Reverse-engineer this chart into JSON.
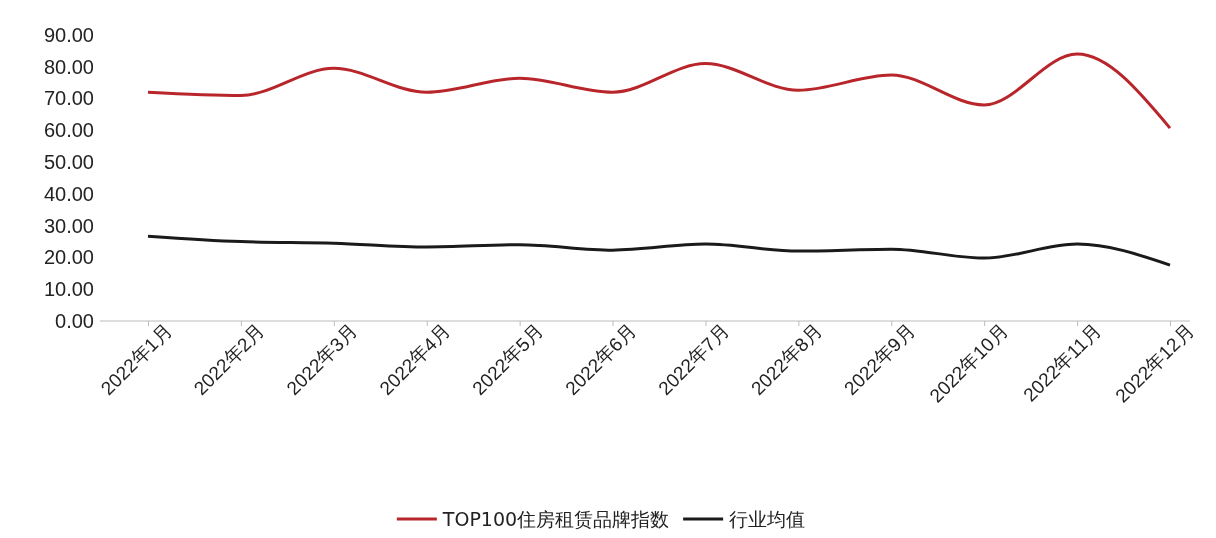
{
  "chart_data": {
    "type": "line",
    "categories": [
      "2022年1月",
      "2022年2月",
      "2022年3月",
      "2022年4月",
      "2022年5月",
      "2022年6月",
      "2022年7月",
      "2022年8月",
      "2022年9月",
      "2022年10月",
      "2022年11月",
      "2022年12月"
    ],
    "series": [
      {
        "name": "TOP100住房租赁品牌指数",
        "color": "#b8262b",
        "values": [
          72.0,
          71.0,
          79.5,
          72.0,
          76.4,
          72.0,
          81.0,
          72.6,
          77.4,
          68.0,
          84.0,
          60.7
        ]
      },
      {
        "name": "行业均值",
        "color": "#1a1a1a",
        "values": [
          26.7,
          25.0,
          24.5,
          23.3,
          24.0,
          22.3,
          24.2,
          22.0,
          22.6,
          19.8,
          24.2,
          17.6
        ]
      }
    ],
    "ylim": [
      0,
      90
    ],
    "yticks": [
      {
        "value": 0,
        "label": "0.00"
      },
      {
        "value": 10,
        "label": "10.00"
      },
      {
        "value": 20,
        "label": "20.00"
      },
      {
        "value": 30,
        "label": "30.00"
      },
      {
        "value": 40,
        "label": "40.00"
      },
      {
        "value": 50,
        "label": "50.00"
      },
      {
        "value": 60,
        "label": "60.00"
      },
      {
        "value": 70,
        "label": "70.00"
      },
      {
        "value": 80,
        "label": "80.00"
      },
      {
        "value": 90,
        "label": "90.00"
      }
    ],
    "grid": false,
    "legend": "bottom",
    "marker": "none",
    "line_style": "solid"
  }
}
